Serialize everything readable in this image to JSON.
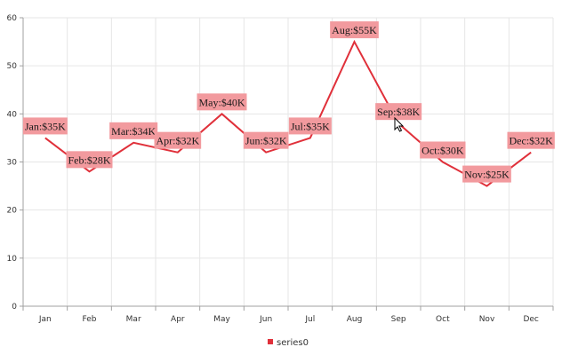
{
  "chart_data": {
    "type": "line",
    "categories": [
      "Jan",
      "Feb",
      "Mar",
      "Apr",
      "May",
      "Jun",
      "Jul",
      "Aug",
      "Sep",
      "Oct",
      "Nov",
      "Dec"
    ],
    "series": [
      {
        "name": "series0",
        "values": [
          35,
          28,
          34,
          32,
          40,
          32,
          35,
          55,
          38,
          30,
          25,
          32
        ]
      }
    ],
    "data_labels": [
      "Jan:$35K",
      "Feb:$28K",
      "Mar:$34K",
      "Apr:$32K",
      "May:$40K",
      "Jun:$32K",
      "Jul:$35K",
      "Aug:$55K",
      "Sep:$38K",
      "Oct:$30K",
      "Nov:$25K",
      "Dec:$32K"
    ],
    "ylim": [
      0,
      60
    ],
    "y_ticks": [
      0,
      10,
      20,
      30,
      40,
      50,
      60
    ],
    "grid": true,
    "legend_position": "bottom-center"
  },
  "colors": {
    "line": "#e0303a",
    "label_background": "#f29a9e",
    "grid": "#e6e6e6",
    "axis": "#a0a0a0"
  }
}
